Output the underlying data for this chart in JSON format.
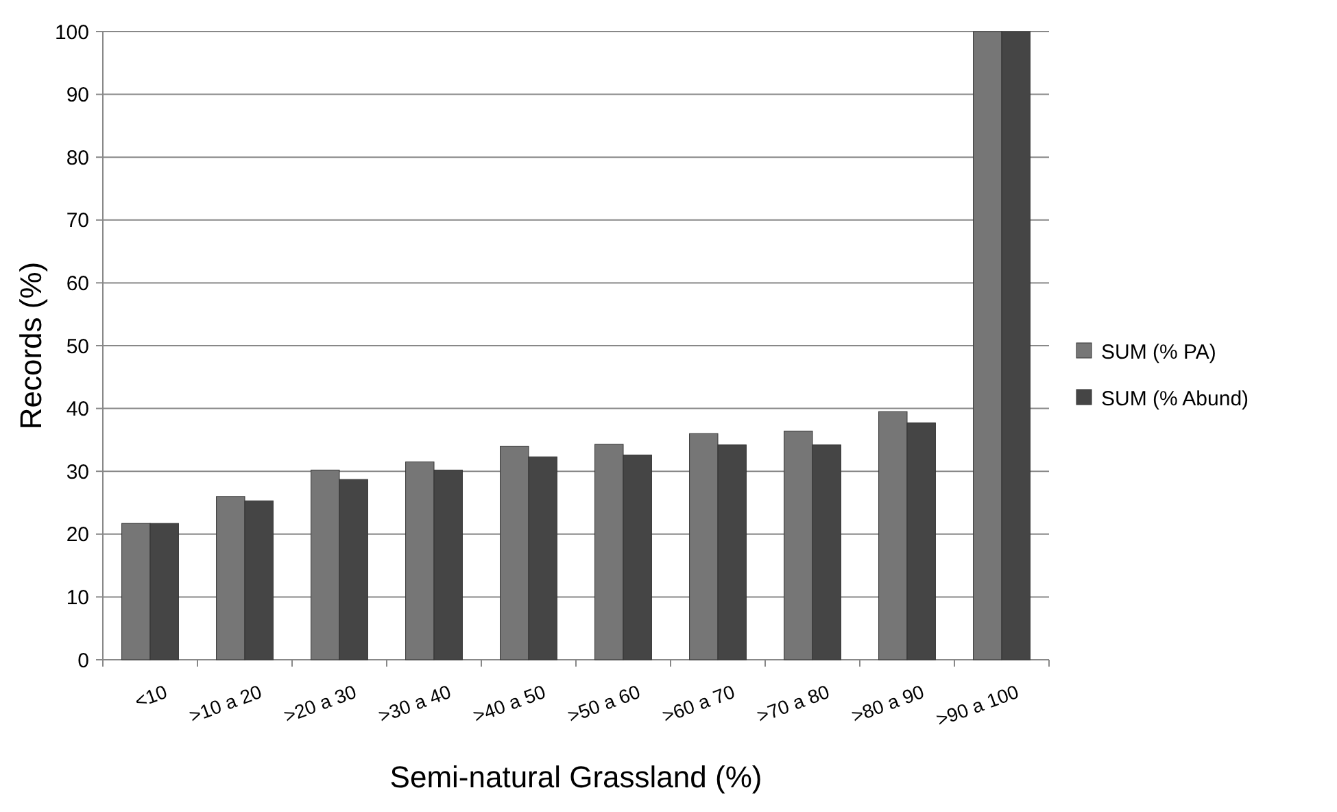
{
  "chart_data": {
    "type": "bar",
    "xlabel": "Semi-natural Grassland (%)",
    "ylabel": "Records (%)",
    "categories": [
      "<10",
      ">10 a 20",
      ">20 a 30",
      ">30 a 40",
      ">40 a 50",
      ">50 a 60",
      ">60 a 70",
      ">70 a 80",
      ">80 a 90",
      ">90 a 100"
    ],
    "series": [
      {
        "name": "SUM (% PA)",
        "color": "#767676",
        "values": [
          21.7,
          26,
          30.2,
          31.5,
          34,
          34.3,
          36,
          36.4,
          39.5,
          100
        ]
      },
      {
        "name": "SUM (% Abund)",
        "color": "#454545",
        "values": [
          21.7,
          25.3,
          28.7,
          30.2,
          32.3,
          32.6,
          34.2,
          34.2,
          37.7,
          100
        ]
      }
    ],
    "ylim": [
      0,
      100
    ],
    "yticks": [
      0,
      10,
      20,
      30,
      40,
      50,
      60,
      70,
      80,
      90,
      100
    ],
    "grid": "y",
    "legend": "right"
  }
}
